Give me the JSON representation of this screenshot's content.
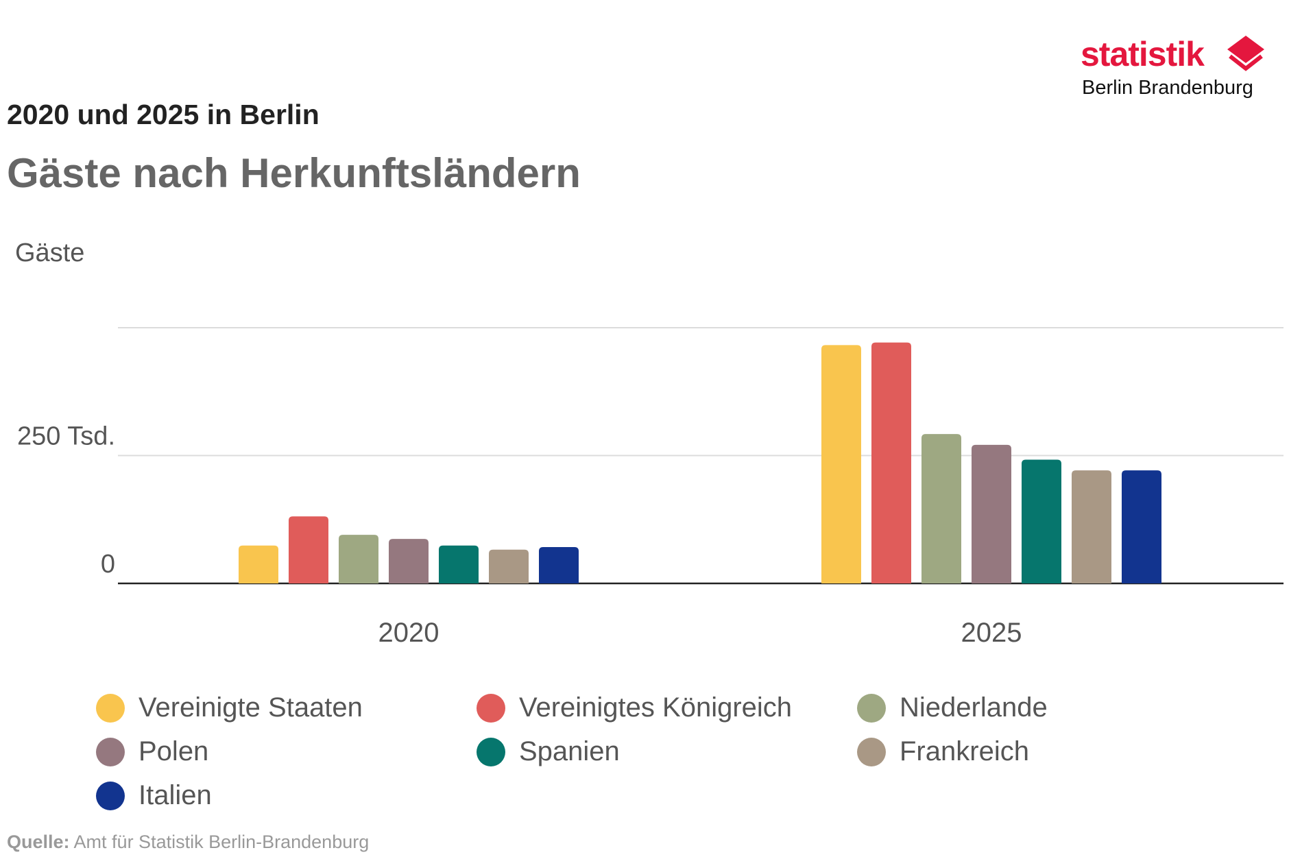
{
  "header": {
    "subtitle": "2020 und 2025 in Berlin",
    "title": "Gäste nach Herkunftsländern"
  },
  "logo": {
    "word": "statistik",
    "sub": "Berlin Brandenburg",
    "color": "#e4173e"
  },
  "source": {
    "label": "Quelle:",
    "text": "Amt für Statistik Berlin-Brandenburg"
  },
  "chart_data": {
    "type": "bar",
    "ylabel": "Gäste",
    "ylim": [
      0,
      500000
    ],
    "yticks": [
      {
        "value": 0,
        "label": "0"
      },
      {
        "value": 250000,
        "label": "250 Tsd."
      },
      {
        "value": 500000,
        "label": ""
      }
    ],
    "grid": true,
    "legend_position": "bottom",
    "categories": [
      "2020",
      "2025"
    ],
    "series": [
      {
        "name": "Vereinigte Staaten",
        "color": "#f9c54e",
        "values": [
          74000,
          466000
        ]
      },
      {
        "name": "Vereinigtes Königreich",
        "color": "#e05c5a",
        "values": [
          131000,
          471000
        ]
      },
      {
        "name": "Niederlande",
        "color": "#9ea882",
        "values": [
          95000,
          292000
        ]
      },
      {
        "name": "Polen",
        "color": "#95787f",
        "values": [
          87000,
          271000
        ]
      },
      {
        "name": "Spanien",
        "color": "#06766d",
        "values": [
          74000,
          242000
        ]
      },
      {
        "name": "Frankreich",
        "color": "#a99885",
        "values": [
          66000,
          221000
        ]
      },
      {
        "name": "Italien",
        "color": "#12348f",
        "values": [
          71000,
          221000
        ]
      }
    ]
  }
}
